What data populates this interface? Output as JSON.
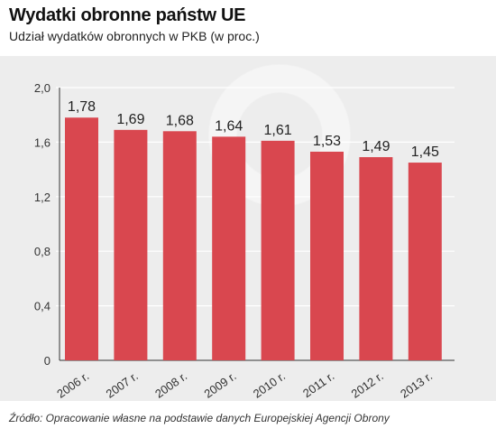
{
  "header": {
    "title": "Wydatki obronne państw UE",
    "subtitle": "Udział wydatków obronnych w PKB (w proc.)"
  },
  "footer": {
    "source": "Źródło: Opracowanie własne na podstawie danych Europejskiej Agencji Obrony"
  },
  "colors": {
    "bar": "#d9474f",
    "plot_background": "#ededed",
    "grid": "#ffffff",
    "axis": "#333333"
  },
  "chart_data": {
    "type": "bar",
    "title": "Wydatki obronne państw UE",
    "subtitle": "Udział wydatków obronnych w PKB (w proc.)",
    "xlabel": "",
    "ylabel": "",
    "categories": [
      "2006 r.",
      "2007 r.",
      "2008 r.",
      "2009 r.",
      "2010 r.",
      "2011 r.",
      "2012 r.",
      "2013 r."
    ],
    "values": [
      1.78,
      1.69,
      1.68,
      1.64,
      1.61,
      1.53,
      1.49,
      1.45
    ],
    "value_labels": [
      "1,78",
      "1,69",
      "1,68",
      "1,64",
      "1,61",
      "1,53",
      "1,49",
      "1,45"
    ],
    "ylim": [
      0,
      2.0
    ],
    "yticks": [
      0,
      0.4,
      0.8,
      1.2,
      1.6,
      2.0
    ],
    "ytick_labels": [
      "0",
      "0,4",
      "0,8",
      "1,2",
      "1,6",
      "2,0"
    ],
    "grid": true,
    "legend": "none"
  }
}
